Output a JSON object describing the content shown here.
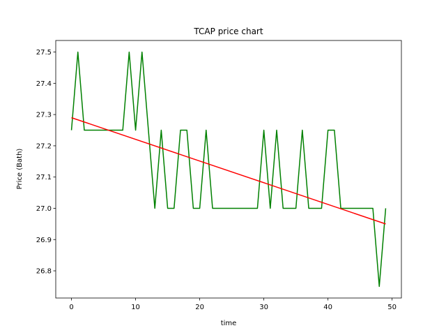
{
  "chart_data": {
    "type": "line",
    "title": "TCAP price chart",
    "xlabel": "time",
    "ylabel": "Price (Bath)",
    "xlim": [
      -2.45,
      51.45
    ],
    "ylim": [
      26.713,
      27.537
    ],
    "x_ticks": [
      0,
      10,
      20,
      30,
      40,
      50
    ],
    "y_ticks": [
      26.8,
      26.9,
      27.0,
      27.1,
      27.2,
      27.3,
      27.4,
      27.5
    ],
    "x_tick_labels": [
      "0",
      "10",
      "20",
      "30",
      "40",
      "50"
    ],
    "y_tick_labels": [
      "26.8",
      "26.9",
      "27.0",
      "27.1",
      "27.2",
      "27.3",
      "27.4",
      "27.5"
    ],
    "grid": false,
    "series": [
      {
        "color": "#008000",
        "x": [
          0,
          1,
          2,
          3,
          4,
          5,
          6,
          7,
          8,
          9,
          10,
          11,
          12,
          13,
          14,
          15,
          16,
          17,
          18,
          19,
          20,
          21,
          22,
          23,
          24,
          25,
          26,
          27,
          28,
          29,
          30,
          31,
          32,
          33,
          34,
          35,
          36,
          37,
          38,
          39,
          40,
          41,
          42,
          43,
          44,
          45,
          46,
          47,
          48,
          49
        ],
        "y": [
          27.25,
          27.5,
          27.25,
          27.25,
          27.25,
          27.25,
          27.25,
          27.25,
          27.25,
          27.5,
          27.25,
          27.5,
          27.25,
          27.0,
          27.25,
          27.0,
          27.0,
          27.25,
          27.25,
          27.0,
          27.0,
          27.25,
          27.0,
          27.0,
          27.0,
          27.0,
          27.0,
          27.0,
          27.0,
          27.0,
          27.25,
          27.0,
          27.25,
          27.0,
          27.0,
          27.0,
          27.25,
          27.0,
          27.0,
          27.0,
          27.25,
          27.25,
          27.0,
          27.0,
          27.0,
          27.0,
          27.0,
          27.0,
          26.75,
          27.0
        ]
      },
      {
        "color": "#ff0000",
        "x": [
          0,
          49
        ],
        "y": [
          27.29,
          26.95
        ]
      }
    ]
  }
}
